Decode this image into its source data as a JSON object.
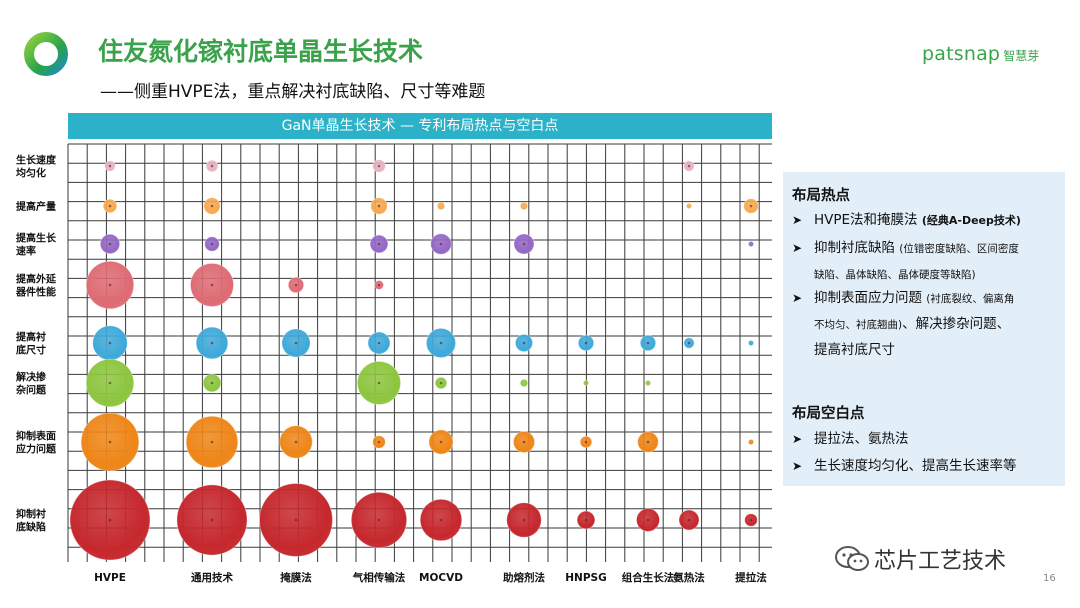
{
  "header": {
    "title": "住友氮化镓衬底单晶生长技术",
    "subtitle": "——侧重HVPE法，重点解决衬底缺陷、尺寸等难题",
    "brand_en": "patsnap",
    "brand_cn": "智慧芽"
  },
  "chart_data": {
    "type": "bubble",
    "title": "GaN单晶生长技术 — 专利布局热点与空白点",
    "x_categories": [
      "HVPE",
      "通用技术",
      "掩膜法",
      "气相传输法",
      "MOCVD",
      "助熔剂法",
      "HNPSG",
      "组合生长法",
      "氨热法",
      "提拉法"
    ],
    "y_categories": [
      "生长速度均匀化",
      "提高产量",
      "提高生长速率",
      "提高外延器件性能",
      "提高衬底尺寸",
      "解决掺杂问题",
      "抑制表面应力问题",
      "抑制衬底缺陷"
    ],
    "y_label_lines": [
      [
        "生长速度",
        "均匀化"
      ],
      [
        "提高产量"
      ],
      [
        "提高生长",
        "速率"
      ],
      [
        "提高外延",
        "器件性能"
      ],
      [
        "提高衬",
        "底尺寸"
      ],
      [
        "解决掺",
        "杂问题"
      ],
      [
        "抑制表面",
        "应力问题"
      ],
      [
        "抑制衬",
        "底缺陷"
      ]
    ],
    "series_colors": [
      "#e7b3c0",
      "#f7a94f",
      "#9468c6",
      "#de6b74",
      "#3fa9d9",
      "#8cc63f",
      "#ee8618",
      "#c5282d"
    ],
    "size_scale_note": "relative",
    "values": [
      [
        4,
        5,
        0,
        6,
        0,
        0,
        0,
        0,
        4,
        0
      ],
      [
        7,
        10,
        0,
        10,
        2,
        2,
        0,
        0,
        1,
        8
      ],
      [
        14,
        8,
        0,
        12,
        16,
        15,
        0,
        0,
        0,
        1
      ],
      [
        85,
        70,
        9,
        3,
        0,
        0,
        0,
        0,
        0,
        0
      ],
      [
        45,
        38,
        30,
        18,
        32,
        11,
        9,
        9,
        4,
        1
      ],
      [
        85,
        12,
        0,
        70,
        5,
        2,
        1,
        1,
        0,
        0
      ],
      [
        125,
        100,
        40,
        6,
        22,
        17,
        5,
        16,
        0,
        1
      ],
      [
        240,
        185,
        200,
        115,
        65,
        45,
        12,
        20,
        15,
        6
      ]
    ]
  },
  "panel": {
    "hot_title": "布局热点",
    "hot_items": [
      {
        "main": "HVPE法和掩膜法",
        "note": "(经典A-Deep技术)"
      },
      {
        "main": "抑制衬底缺陷",
        "note": "(位错密度缺陷、区间密度",
        "note2": "缺陷、晶体缺陷、晶体硬度等缺陷)"
      },
      {
        "main": "抑制表面应力问题",
        "note": "(衬底裂纹、偏离角",
        "note2": "不均匀、衬底翘曲)",
        "tail": "、解决掺杂问题、",
        "tail2": "提高衬底尺寸"
      }
    ],
    "blank_title": "布局空白点",
    "blank_items": [
      "提拉法、氨热法",
      "生长速度均匀化、提高生长速率等"
    ]
  },
  "watermark": "芯片工艺技术",
  "page_number": "16"
}
